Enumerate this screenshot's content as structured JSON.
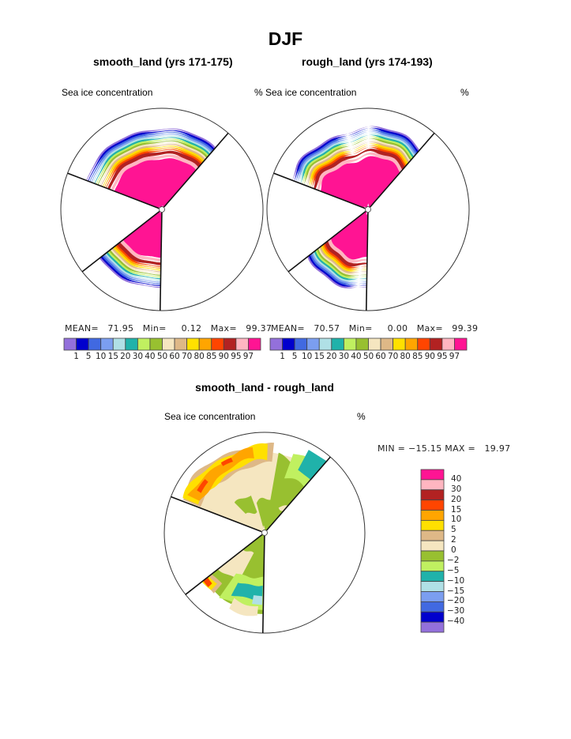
{
  "figure": {
    "title": "DJF",
    "difference_title": "smooth_land - rough_land"
  },
  "chart_data": [
    {
      "type": "heatmap",
      "projection": "polar",
      "title": "smooth_land (yrs 171-175)",
      "variable": "Sea ice concentration",
      "units": "%",
      "stats": {
        "mean_label": "MEAN=",
        "mean": "71.95",
        "min_label": "Min=",
        "min": "0.12",
        "max_label": "Max=",
        "max": "99.37"
      },
      "colorbar": {
        "orientation": "horizontal",
        "levels": [
          "1",
          "5",
          "10",
          "15",
          "20",
          "30",
          "40",
          "50",
          "60",
          "70",
          "80",
          "85",
          "90",
          "95",
          "97"
        ],
        "colors": [
          "#9370db",
          "#0000cd",
          "#4169e1",
          "#7b9ef0",
          "#b0e0e6",
          "#20b2aa",
          "#c0f060",
          "#98c030",
          "#f5e6c0",
          "#deb887",
          "#ffe000",
          "#ffa500",
          "#ff4500",
          "#b22222",
          "#ffb6c1",
          "#ff1493"
        ]
      },
      "ice_edge_profile": "concentric bands, >97% in interior"
    },
    {
      "type": "heatmap",
      "projection": "polar",
      "title": "rough_land (yrs 174-193)",
      "variable": "% Sea ice concentration",
      "units": "%",
      "stats": {
        "mean_label": "MEAN=",
        "mean": "70.57",
        "min_label": "Min=",
        "min": "0.00",
        "max_label": "Max=",
        "max": "99.39"
      },
      "colorbar": {
        "orientation": "horizontal",
        "levels": [
          "1",
          "5",
          "10",
          "15",
          "20",
          "30",
          "40",
          "50",
          "60",
          "70",
          "80",
          "85",
          "90",
          "95",
          "97"
        ],
        "colors": [
          "#9370db",
          "#0000cd",
          "#4169e1",
          "#7b9ef0",
          "#b0e0e6",
          "#20b2aa",
          "#c0f060",
          "#98c030",
          "#f5e6c0",
          "#deb887",
          "#ffe000",
          "#ffa500",
          "#ff4500",
          "#b22222",
          "#ffb6c1",
          "#ff1493"
        ]
      }
    },
    {
      "type": "heatmap",
      "projection": "polar",
      "title": "smooth_land - rough_land",
      "variable": "Sea ice concentration",
      "units": "%",
      "stats": {
        "min_label": "MIN =",
        "min": "−15.15",
        "max_label": "MAX =",
        "max": "19.97"
      },
      "colorbar": {
        "orientation": "vertical",
        "levels": [
          "40",
          "30",
          "20",
          "15",
          "10",
          "5",
          "2",
          "0",
          "−2",
          "−5",
          "−10",
          "−15",
          "−20",
          "−30",
          "−40"
        ],
        "colors": [
          "#ff1493",
          "#ffb6c1",
          "#b22222",
          "#ff4500",
          "#ffa500",
          "#ffe000",
          "#deb887",
          "#f5e6c0",
          "#98c030",
          "#c0f060",
          "#20b2aa",
          "#b0e0e6",
          "#7b9ef0",
          "#4169e1",
          "#0000cd",
          "#9370db"
        ]
      }
    }
  ]
}
